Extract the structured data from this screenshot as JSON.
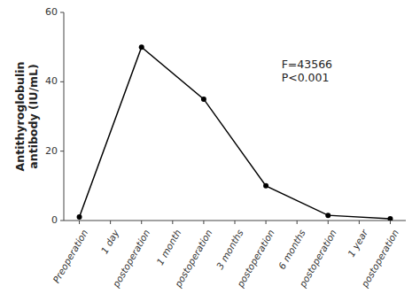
{
  "chart_data": {
    "type": "line",
    "x": [
      0,
      2,
      4,
      6,
      8,
      10
    ],
    "values": [
      1,
      50,
      35,
      10,
      1.5,
      0.5
    ],
    "color": "#000000",
    "marker": "circle",
    "xlim": [
      -0.5,
      10.5
    ],
    "xticks": [
      {
        "value": 0,
        "label": "Preoperation"
      },
      {
        "value": 1,
        "label": "1 day"
      },
      {
        "value": 2,
        "label": "postoperation"
      },
      {
        "value": 3,
        "label": "1 month"
      },
      {
        "value": 4,
        "label": "postoperation"
      },
      {
        "value": 5,
        "label": "3 months"
      },
      {
        "value": 6,
        "label": "postoperation"
      },
      {
        "value": 7,
        "label": "6 months"
      },
      {
        "value": 8,
        "label": "postoperation"
      },
      {
        "value": 9,
        "label": "1 year"
      },
      {
        "value": 10,
        "label": "postoperation"
      }
    ],
    "ylim": [
      0,
      60
    ],
    "yticks": [
      0,
      20,
      40,
      60
    ],
    "y_label": "Antithyroglobulin\nantibody (IU/mL)",
    "annotations": [
      {
        "text": "F=43566\nP<0.001",
        "x": 6.5,
        "y": 47
      }
    ],
    "grid": false
  }
}
